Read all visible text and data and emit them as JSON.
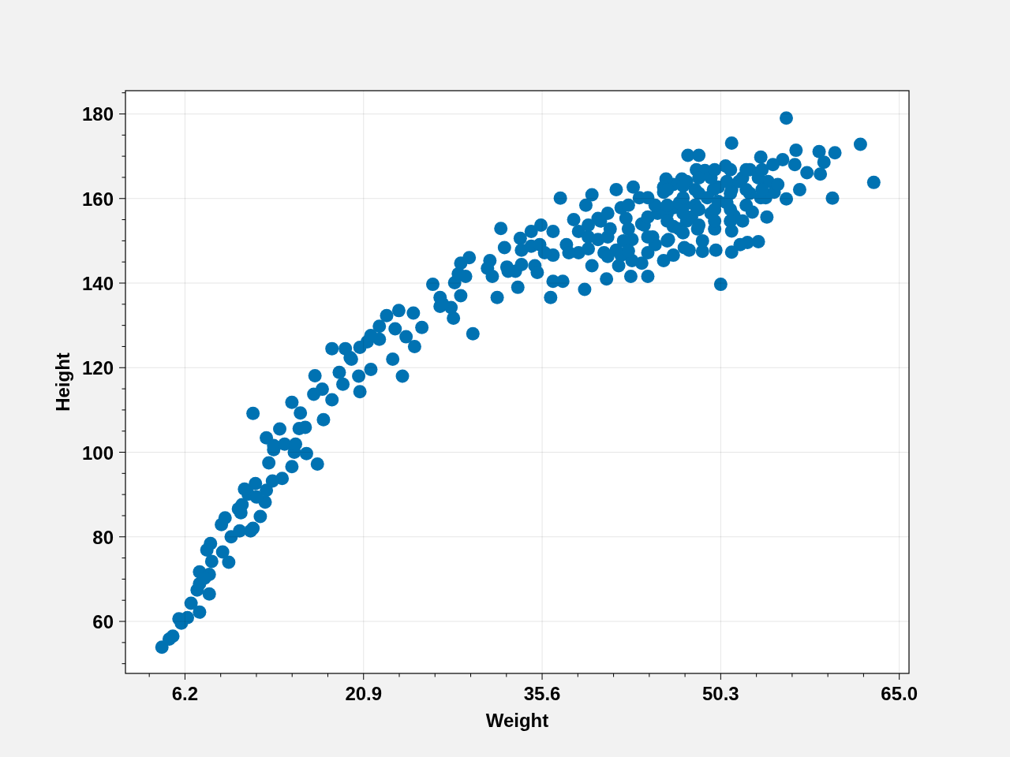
{
  "chart_data": {
    "type": "scatter",
    "xlabel": "Weight",
    "ylabel": "Height",
    "color": "#0072b2",
    "marker": "circle",
    "grid": true,
    "xlim": [
      1.3,
      65.8
    ],
    "ylim": [
      47.7,
      185.5
    ],
    "xticks": [
      {
        "value": 3.26,
        "label": null
      },
      6.2,
      {
        "value": 9.14,
        "label": null
      },
      {
        "value": 12.08,
        "label": null
      },
      {
        "value": 15.02,
        "label": null
      },
      {
        "value": 17.96,
        "label": null
      },
      20.9,
      {
        "value": 23.84,
        "label": null
      },
      {
        "value": 26.78,
        "label": null
      },
      {
        "value": 29.72,
        "label": null
      },
      {
        "value": 32.66,
        "label": null
      },
      35.6,
      {
        "value": 38.54,
        "label": null
      },
      {
        "value": 41.48,
        "label": null
      },
      {
        "value": 44.42,
        "label": null
      },
      {
        "value": 47.36,
        "label": null
      },
      50.3,
      {
        "value": 53.24,
        "label": null
      },
      {
        "value": 56.18,
        "label": null
      },
      {
        "value": 59.12,
        "label": null
      },
      {
        "value": 62.06,
        "label": null
      },
      {
        "value": 65,
        "label": "65.0"
      }
    ],
    "yticks": [
      {
        "value": 50,
        "label": null
      },
      {
        "value": 55,
        "label": null
      },
      60,
      {
        "value": 65,
        "label": null
      },
      {
        "value": 70,
        "label": null
      },
      {
        "value": 75,
        "label": null
      },
      80,
      {
        "value": 85,
        "label": null
      },
      {
        "value": 90,
        "label": null
      },
      {
        "value": 95,
        "label": null
      },
      100,
      {
        "value": 105,
        "label": null
      },
      {
        "value": 110,
        "label": null
      },
      {
        "value": 115,
        "label": null
      },
      120,
      {
        "value": 125,
        "label": null
      },
      {
        "value": 130,
        "label": null
      },
      {
        "value": 135,
        "label": null
      },
      140,
      {
        "value": 145,
        "label": null
      },
      {
        "value": 150,
        "label": null
      },
      {
        "value": 155,
        "label": null
      },
      160,
      {
        "value": 165,
        "label": null
      },
      {
        "value": 170,
        "label": null
      },
      {
        "value": 175,
        "label": null
      },
      180,
      {
        "value": 185,
        "label": null
      }
    ],
    "x": [
      4.3,
      4.9,
      5.2,
      5.9,
      5.7,
      6.4,
      6.7,
      7.4,
      7.2,
      8.2,
      7.4,
      7.4,
      8.2,
      7.8,
      8.4,
      9.8,
      8.3,
      8.0,
      9.3,
      10.0,
      9.2,
      9.5,
      10.7,
      11.6,
      11.8,
      12.4,
      10.6,
      10.9,
      11.4,
      12.0,
      12.8,
      12.9,
      13.1,
      14.2,
      15.0,
      16.2,
      17.1,
      13.5,
      15.2,
      11.1,
      12.1,
      13.4,
      11.8,
      12.9,
      14.0,
      13.5,
      14.4,
      15.3,
      15.0,
      15.7,
      15.6,
      16.1,
      17.6,
      16.9,
      16.8,
      17.5,
      18.3,
      18.9,
      18.3,
      19.4,
      19.2,
      19.8,
      20.5,
      20.6,
      21.2,
      22.2,
      21.5,
      23.3,
      24.1,
      25.1,
      24.4,
      23.5,
      25.7,
      28.3,
      22.8,
      23.8,
      25.0,
      22.2,
      26.6,
      27.2,
      27.2,
      28.1,
      28.9,
      28.4,
      28.7,
      29.3,
      28.9,
      29.6,
      29.9,
      31.3,
      31.1,
      31.5,
      31.9,
      32.2,
      32.5,
      32.7,
      33.6,
      33.8,
      33.9,
      33.4,
      34.7,
      34.7,
      35.5,
      36.3,
      36.5,
      37.3,
      36.5,
      39.1,
      40.9,
      42.9,
      44.3,
      37.1,
      39.7,
      41.7,
      43.1,
      38.2,
      39.2,
      47.1,
      48.3,
      48.8,
      49.9,
      50.3,
      47.7,
      46.4,
      45.6,
      43.8,
      41.9,
      39.7,
      35.0,
      32.8,
      35.4,
      36.5,
      37.6,
      38.6,
      38.6,
      40.2,
      40.2,
      41.2,
      42.1,
      41.7,
      43.0,
      42.5,
      43.6,
      43.8,
      44.7,
      45.1,
      45.6,
      46.4,
      47.3,
      46.4,
      48.4,
      49.5,
      50.1,
      43.0,
      42.1,
      55.7,
      51.2,
      47.6,
      48.5,
      61.8,
      62.9,
      59.5,
      59.7,
      58.4,
      58.8,
      58.5,
      56.5,
      57.4,
      56.8,
      55.7,
      55.4,
      54.6,
      53.6,
      54.2,
      56.4,
      54.1,
      52.9,
      53.4,
      52.5,
      51.9,
      51.2,
      51.2,
      52.7,
      50.7,
      51.2,
      53.6,
      54.7,
      49.0,
      45.8,
      45.6,
      46.4,
      47.5,
      51.4,
      50.8,
      49.7,
      48.2,
      46.9,
      46.0,
      47.3,
      44.9,
      47.5,
      48.2,
      49.2,
      50.1,
      50.8,
      51.8,
      49.5,
      47.9,
      46.9,
      48.8,
      49.8,
      51.1,
      52.1,
      52.7,
      52.1,
      53.4,
      54.0,
      55.0,
      44.9,
      44.0,
      42.3,
      40.7,
      39.4,
      37.8,
      40.4,
      45.9,
      39.4,
      39.4,
      41.0,
      41.0,
      41.0,
      42.7,
      42.7,
      42.7,
      44.3,
      44.3,
      44.3,
      44.3,
      45.9,
      45.9,
      45.9,
      45.9,
      47.2,
      47.2,
      47.2,
      47.2,
      48.5,
      48.5,
      48.5,
      48.5,
      49.8,
      49.8,
      49.8,
      51.1,
      51.1,
      51.1,
      52.4,
      52.4,
      52.4,
      53.7,
      53.7,
      10.8,
      20.6,
      21.5,
      19.9,
      27.4,
      33.9,
      35.8,
      35.2
    ],
    "values": [
      53.9,
      55.8,
      56.5,
      59.6,
      60.6,
      60.9,
      64.3,
      62.2,
      67.4,
      66.5,
      68.9,
      71.7,
      71.1,
      70.2,
      74.2,
      74.0,
      78.4,
      76.9,
      76.4,
      80.0,
      82.9,
      84.5,
      81.4,
      81.4,
      82.0,
      84.8,
      86.6,
      87.6,
      90.1,
      92.6,
      88.2,
      91.0,
      97.5,
      93.8,
      96.6,
      99.7,
      97.2,
      100.6,
      100.0,
      91.3,
      89.4,
      93.2,
      109.2,
      103.4,
      105.5,
      101.6,
      101.9,
      101.9,
      111.8,
      109.3,
      105.6,
      105.9,
      107.7,
      118.1,
      113.7,
      114.9,
      112.4,
      118.9,
      124.5,
      124.5,
      116.1,
      122.4,
      118.0,
      114.3,
      126.1,
      129.8,
      119.6,
      122.0,
      118.0,
      125.0,
      127.3,
      129.2,
      129.5,
      131.7,
      132.3,
      133.5,
      132.9,
      126.7,
      139.7,
      136.6,
      134.5,
      134.2,
      137.0,
      140.1,
      142.2,
      141.6,
      144.7,
      146.0,
      128.0,
      145.3,
      143.5,
      141.6,
      136.6,
      152.9,
      148.4,
      143.8,
      139.0,
      150.6,
      147.8,
      142.8,
      148.7,
      152.2,
      153.7,
      136.6,
      152.2,
      140.4,
      140.4,
      138.5,
      141.0,
      141.6,
      141.6,
      160.1,
      160.9,
      162.1,
      162.7,
      155.0,
      158.4,
      164.6,
      166.8,
      147.5,
      147.8,
      139.7,
      147.8,
      146.6,
      145.3,
      144.7,
      144.1,
      144.1,
      144.1,
      142.8,
      149.1,
      146.6,
      149.1,
      152.2,
      147.2,
      150.3,
      155.3,
      152.8,
      157.8,
      147.8,
      150.3,
      155.3,
      160.2,
      154.0,
      150.9,
      156.5,
      161.5,
      153.4,
      158.4,
      163.3,
      152.8,
      156.5,
      162.7,
      145.3,
      146.6,
      179.0,
      173.1,
      170.2,
      170.2,
      172.8,
      163.8,
      160.1,
      170.8,
      171.1,
      168.6,
      165.8,
      171.4,
      166.1,
      162.1,
      159.9,
      169.2,
      168.0,
      169.8,
      164.0,
      168.0,
      155.6,
      156.8,
      149.8,
      149.6,
      149.1,
      147.3,
      152.3,
      166.8,
      167.7,
      162.1,
      160.2,
      161.5,
      166.6,
      164.6,
      162.7,
      157.8,
      154.7,
      155.9,
      159.0,
      162.1,
      162.1,
      159.0,
      150.3,
      148.4,
      149.1,
      164.0,
      158.4,
      160.2,
      159.3,
      164.0,
      164.0,
      164.9,
      155.6,
      152.8,
      150.0,
      152.8,
      154.7,
      154.7,
      161.2,
      164.9,
      164.9,
      160.2,
      163.3,
      158.4,
      153.7,
      150.0,
      147.2,
      150.9,
      147.2,
      154.7,
      156.5,
      153.7,
      148.1,
      156.5,
      150.9,
      146.3,
      158.4,
      152.8,
      147.6,
      160.2,
      155.6,
      150.9,
      147.2,
      162.1,
      158.4,
      154.7,
      150.0,
      163.0,
      160.2,
      156.5,
      151.9,
      164.9,
      161.2,
      157.4,
      153.7,
      166.8,
      157.4,
      154.7,
      166.8,
      161.2,
      157.4,
      166.8,
      162.1,
      158.4,
      166.8,
      162.1,
      85.7,
      124.8,
      127.6,
      122.0,
      135.1,
      144.4,
      147.2,
      142.5
    ]
  }
}
